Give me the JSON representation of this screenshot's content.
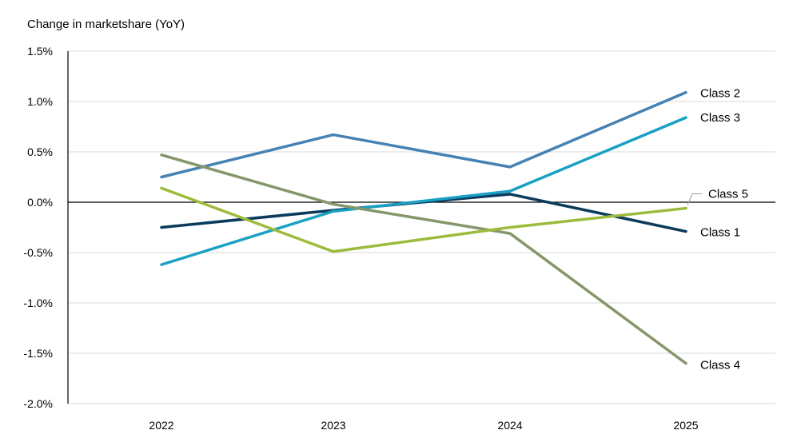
{
  "chart_data": {
    "type": "line",
    "title": "",
    "ylabel": "Change in marketshare (YoY)",
    "xlabel": "",
    "x": [
      "2022",
      "2023",
      "2024",
      "2025"
    ],
    "ylim": [
      -2.0,
      1.5
    ],
    "yticks": [
      1.5,
      1.0,
      0.5,
      0.0,
      -0.5,
      -1.0,
      -1.5,
      -2.0
    ],
    "ytick_labels": [
      "1.5%",
      "1.0%",
      "0.5%",
      "0.0%",
      "-0.5%",
      "-1.0%",
      "-1.5%",
      "-2.0%"
    ],
    "grid": "horizontal",
    "legend": "inline labels at right end of each line",
    "series": [
      {
        "name": "Class 1",
        "color": "#0b3a5c",
        "values": [
          -0.25,
          -0.08,
          0.08,
          -0.29
        ]
      },
      {
        "name": "Class 2",
        "color": "#4682b4",
        "values": [
          0.25,
          0.67,
          0.35,
          1.09
        ]
      },
      {
        "name": "Class 3",
        "color": "#1aa0c4",
        "values": [
          -0.62,
          -0.09,
          0.11,
          0.84
        ]
      },
      {
        "name": "Class 4",
        "color": "#85976a",
        "values": [
          0.47,
          -0.02,
          -0.31,
          -1.6
        ]
      },
      {
        "name": "Class 5",
        "color": "#9dbb3a",
        "values": [
          0.14,
          -0.49,
          -0.25,
          -0.06
        ]
      }
    ]
  }
}
